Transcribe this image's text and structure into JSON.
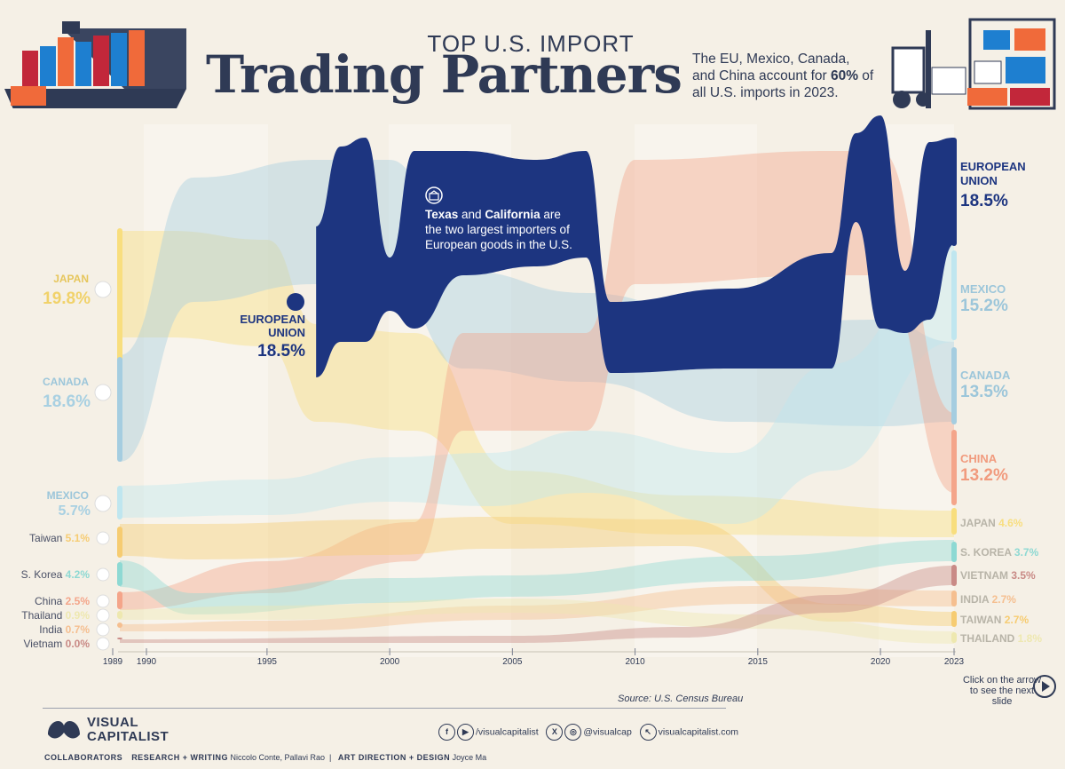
{
  "header": {
    "kicker": "TOP U.S. IMPORT",
    "title": "Trading Partners",
    "subtitle_pre": "The EU, Mexico, Canada, and China account for ",
    "subtitle_bold": "60%",
    "subtitle_post": " of all U.S. imports in 2023."
  },
  "annotation": {
    "bold1": "Texas",
    "mid": " and ",
    "bold2": "California",
    "rest": " are the two largest importers of European goods in the U.S."
  },
  "footer": {
    "source": "Source: U.S. Census Bureau",
    "next_slide": "Click on the arrow to see the next slide",
    "brand": "VISUAL CAPITALIST",
    "social_1": "/visualcapitalist",
    "social_2": "@visualcap",
    "social_3": "visualcapitalist.com",
    "collab_label": "COLLABORATORS",
    "research_label": "RESEARCH + WRITING",
    "research_names": "Niccolo Conte, Pallavi Rao",
    "art_label": "ART DIRECTION + DESIGN",
    "art_names": "Joyce Ma"
  },
  "colors": {
    "eu": "#1d3580",
    "japan": "#f8de7e",
    "canada": "#a5cde0",
    "mexico": "#bfe6ef",
    "china": "#f4a58a",
    "taiwan": "#f6cc72",
    "korea": "#8ed9d3",
    "india": "#f5bf90",
    "thailand": "#eee8b0",
    "vietnam": "#c98a86",
    "bg": "#f5f0e6",
    "ink": "#2f3a55"
  },
  "chart_data": {
    "type": "bump-area",
    "x_ticks": [
      "1989",
      "1990",
      "1995",
      "2000",
      "2005",
      "2010",
      "2015",
      "2020",
      "2023"
    ],
    "start_year": "1989",
    "end_year": "2023",
    "series": [
      {
        "key": "eu",
        "name": "European Union",
        "pct_1989": "",
        "pct_2023": "18.5%"
      },
      {
        "key": "japan",
        "name": "Japan",
        "pct_1989": "19.8%",
        "pct_2023": "4.6%"
      },
      {
        "key": "canada",
        "name": "Canada",
        "pct_1989": "18.6%",
        "pct_2023": "13.5%"
      },
      {
        "key": "mexico",
        "name": "Mexico",
        "pct_1989": "5.7%",
        "pct_2023": "15.2%"
      },
      {
        "key": "taiwan",
        "name": "Taiwan",
        "pct_1989": "5.1%",
        "pct_2023": "2.7%"
      },
      {
        "key": "korea",
        "name": "S. Korea",
        "pct_1989": "4.2%",
        "pct_2023": "3.7%"
      },
      {
        "key": "china",
        "name": "China",
        "pct_1989": "2.5%",
        "pct_2023": "13.2%"
      },
      {
        "key": "thailand",
        "name": "Thailand",
        "pct_1989": "0.9%",
        "pct_2023": "1.8%"
      },
      {
        "key": "india",
        "name": "India",
        "pct_1989": "0.7%",
        "pct_2023": "2.7%"
      },
      {
        "key": "vietnam",
        "name": "Vietnam",
        "pct_1989": "0.0%",
        "pct_2023": "3.5%"
      }
    ],
    "left_labels": [
      {
        "key": "japan",
        "name": "JAPAN",
        "pct": "19.8%"
      },
      {
        "key": "canada",
        "name": "CANADA",
        "pct": "18.6%"
      },
      {
        "key": "mexico",
        "name": "MEXICO",
        "pct": "5.7%"
      },
      {
        "key": "taiwan",
        "name": "Taiwan",
        "pct": "5.1%"
      },
      {
        "key": "korea",
        "name": "S. Korea",
        "pct": "4.2%"
      },
      {
        "key": "china",
        "name": "China",
        "pct": "2.5%"
      },
      {
        "key": "thailand",
        "name": "Thailand",
        "pct": "0.9%"
      },
      {
        "key": "india",
        "name": "India",
        "pct": "0.7%"
      },
      {
        "key": "vietnam",
        "name": "Vietnam",
        "pct": "0.0%"
      }
    ],
    "right_labels": [
      {
        "key": "eu",
        "name": "EUROPEAN UNION",
        "pct": "18.5%"
      },
      {
        "key": "mexico",
        "name": "MEXICO",
        "pct": "15.2%"
      },
      {
        "key": "canada",
        "name": "CANADA",
        "pct": "13.5%"
      },
      {
        "key": "china",
        "name": "CHINA",
        "pct": "13.2%"
      },
      {
        "key": "japan",
        "name": "JAPAN",
        "pct": "4.6%"
      },
      {
        "key": "korea",
        "name": "S. KOREA",
        "pct": "3.7%"
      },
      {
        "key": "vietnam",
        "name": "VIETNAM",
        "pct": "3.5%"
      },
      {
        "key": "india",
        "name": "INDIA",
        "pct": "2.7%"
      },
      {
        "key": "taiwan",
        "name": "TAIWAN",
        "pct": "2.7%"
      },
      {
        "key": "thailand",
        "name": "THAILAND",
        "pct": "1.8%"
      }
    ],
    "eu_entry_label": {
      "name": "EUROPEAN UNION",
      "pct": "18.5%",
      "year": "1997"
    }
  }
}
